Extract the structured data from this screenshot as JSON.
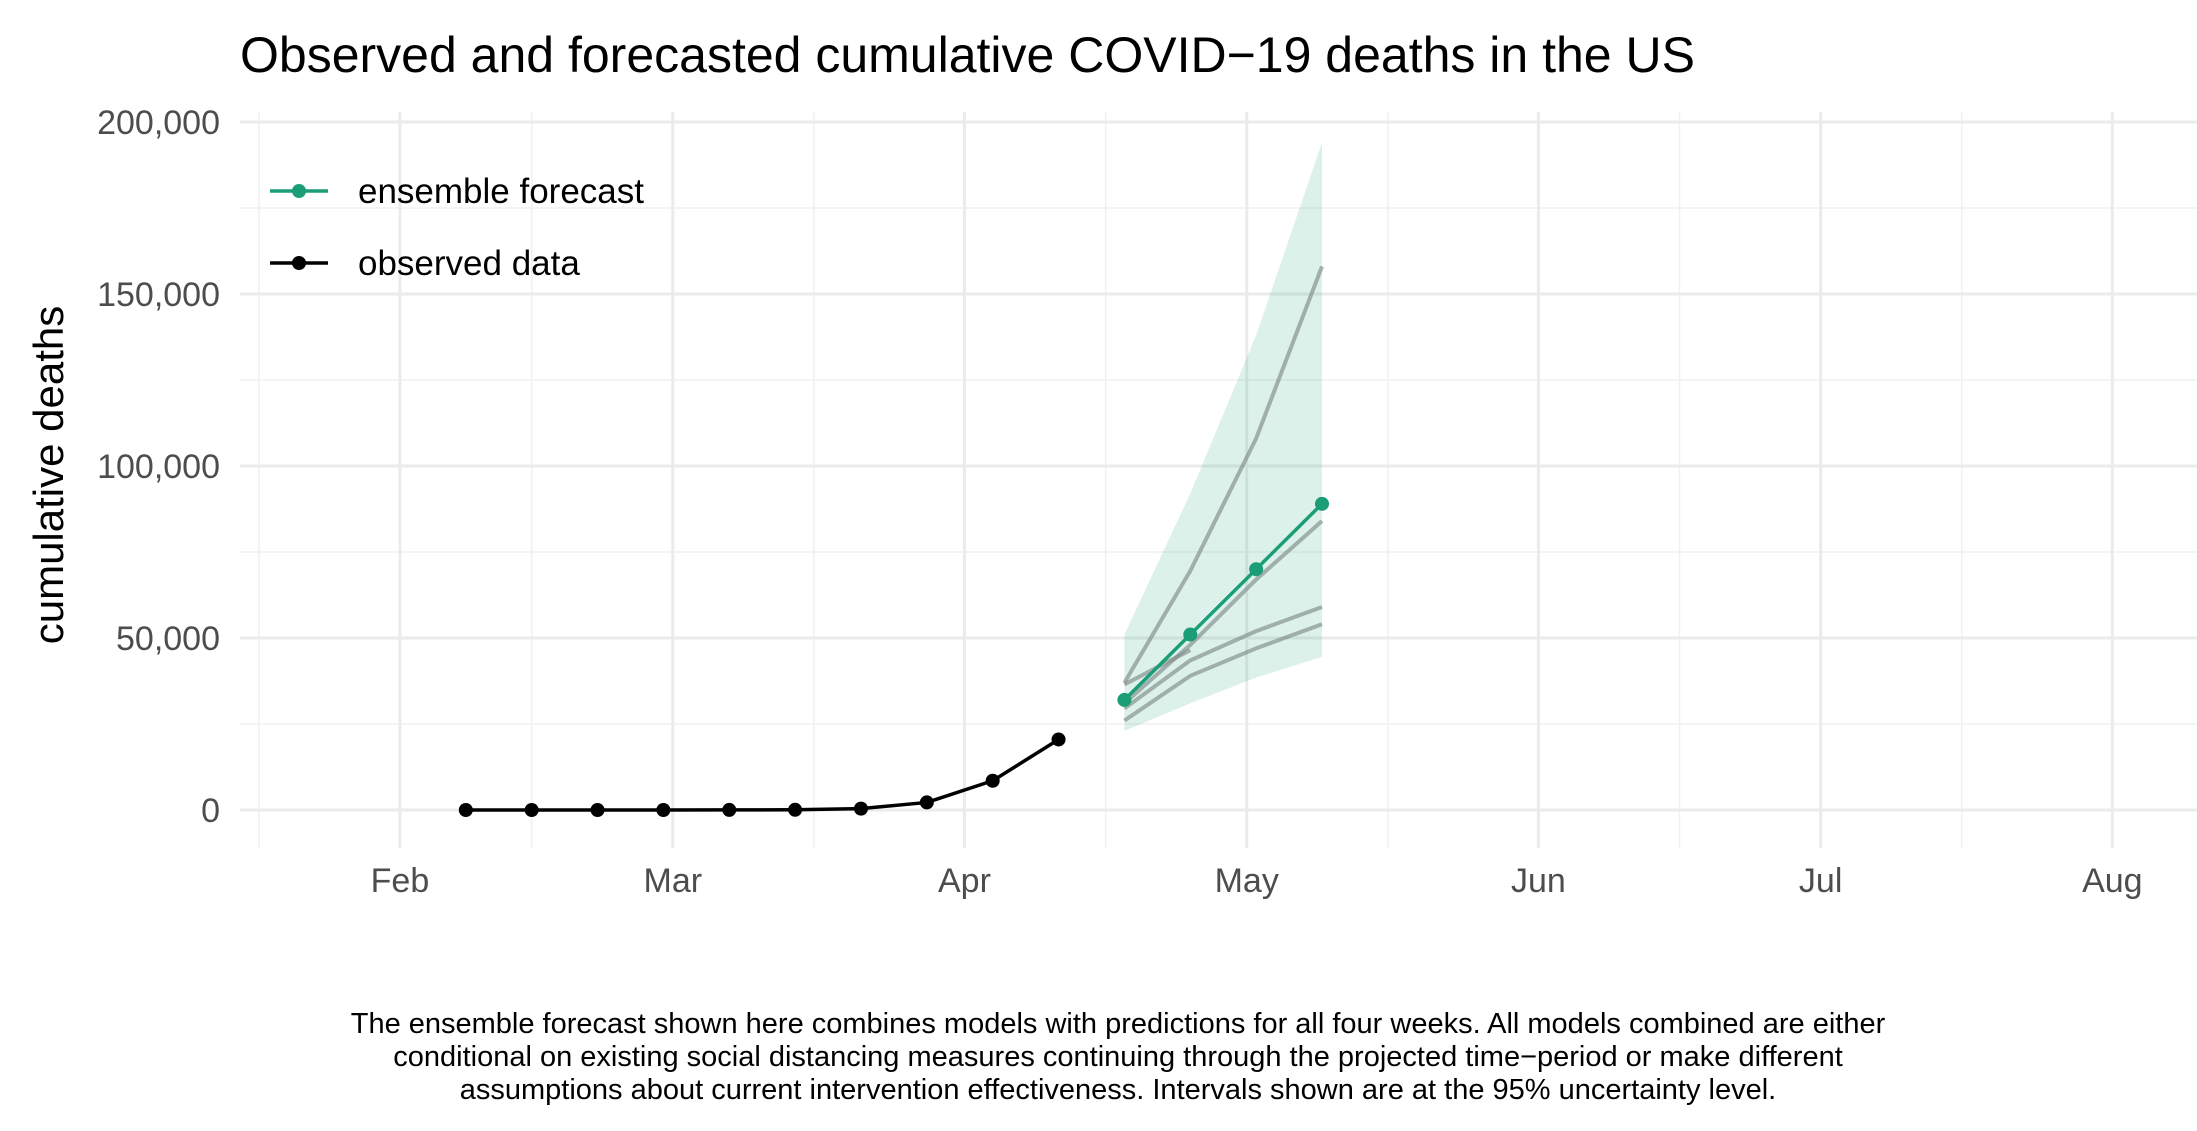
{
  "chart_data": {
    "type": "line",
    "title": "Observed and forecasted cumulative COVID−19 deaths in the US",
    "xlabel": "",
    "ylabel": "cumulative deaths",
    "ylim": [
      0,
      200000
    ],
    "xlim": [
      "2020-01-15",
      "2020-08-10"
    ],
    "x_ticks": [
      "2020-02-01",
      "2020-03-01",
      "2020-04-01",
      "2020-05-01",
      "2020-06-01",
      "2020-07-01",
      "2020-08-01"
    ],
    "x_tick_labels": [
      "Feb",
      "Mar",
      "Apr",
      "May",
      "Jun",
      "Jul",
      "Aug"
    ],
    "y_ticks": [
      0,
      50000,
      100000,
      150000,
      200000
    ],
    "y_tick_labels": [
      "0",
      "50,000",
      "100,000",
      "150,000",
      "200,000"
    ],
    "grid": true,
    "legend_position": "top-left",
    "legend": [
      {
        "label": "ensemble forecast",
        "color": "#1b9e77"
      },
      {
        "label": "observed data",
        "color": "#000000"
      }
    ],
    "series": [
      {
        "name": "observed data",
        "color": "#000000",
        "x": [
          "2020-02-08",
          "2020-02-15",
          "2020-02-22",
          "2020-02-29",
          "2020-03-07",
          "2020-03-14",
          "2020-03-21",
          "2020-03-28",
          "2020-04-04",
          "2020-04-11"
        ],
        "values": [
          0,
          0,
          0,
          0,
          20,
          60,
          400,
          2200,
          8500,
          20500
        ]
      },
      {
        "name": "ensemble forecast",
        "color": "#1b9e77",
        "x": [
          "2020-04-18",
          "2020-04-25",
          "2020-05-02",
          "2020-05-09"
        ],
        "values": [
          32000,
          51000,
          70000,
          89000
        ],
        "lower": [
          23000,
          31000,
          38500,
          44500
        ],
        "upper": [
          51000,
          92000,
          138000,
          194000
        ]
      }
    ],
    "model_lines": [
      {
        "x": [
          "2020-04-18",
          "2020-04-25",
          "2020-05-02",
          "2020-05-09"
        ],
        "values": [
          37000,
          69500,
          108000,
          158000
        ]
      },
      {
        "x": [
          "2020-04-18",
          "2020-04-25",
          "2020-05-02",
          "2020-05-09"
        ],
        "values": [
          31000,
          48000,
          67000,
          84000
        ]
      },
      {
        "x": [
          "2020-04-18",
          "2020-04-25",
          "2020-05-02",
          "2020-05-09"
        ],
        "values": [
          29500,
          43500,
          52000,
          59000
        ]
      },
      {
        "x": [
          "2020-04-18",
          "2020-04-25",
          "2020-05-02",
          "2020-05-09"
        ],
        "values": [
          26000,
          39000,
          47000,
          54000
        ]
      },
      {
        "x": [
          "2020-04-18",
          "2020-04-25"
        ],
        "values": [
          36500,
          46500
        ]
      }
    ],
    "caption": [
      "The ensemble forecast shown here combines models with predictions for all four weeks. All models combined are either",
      "conditional on existing social distancing measures continuing through the projected time−period or make different",
      "assumptions about current intervention effectiveness. Intervals shown are at the 95% uncertainty level."
    ]
  }
}
